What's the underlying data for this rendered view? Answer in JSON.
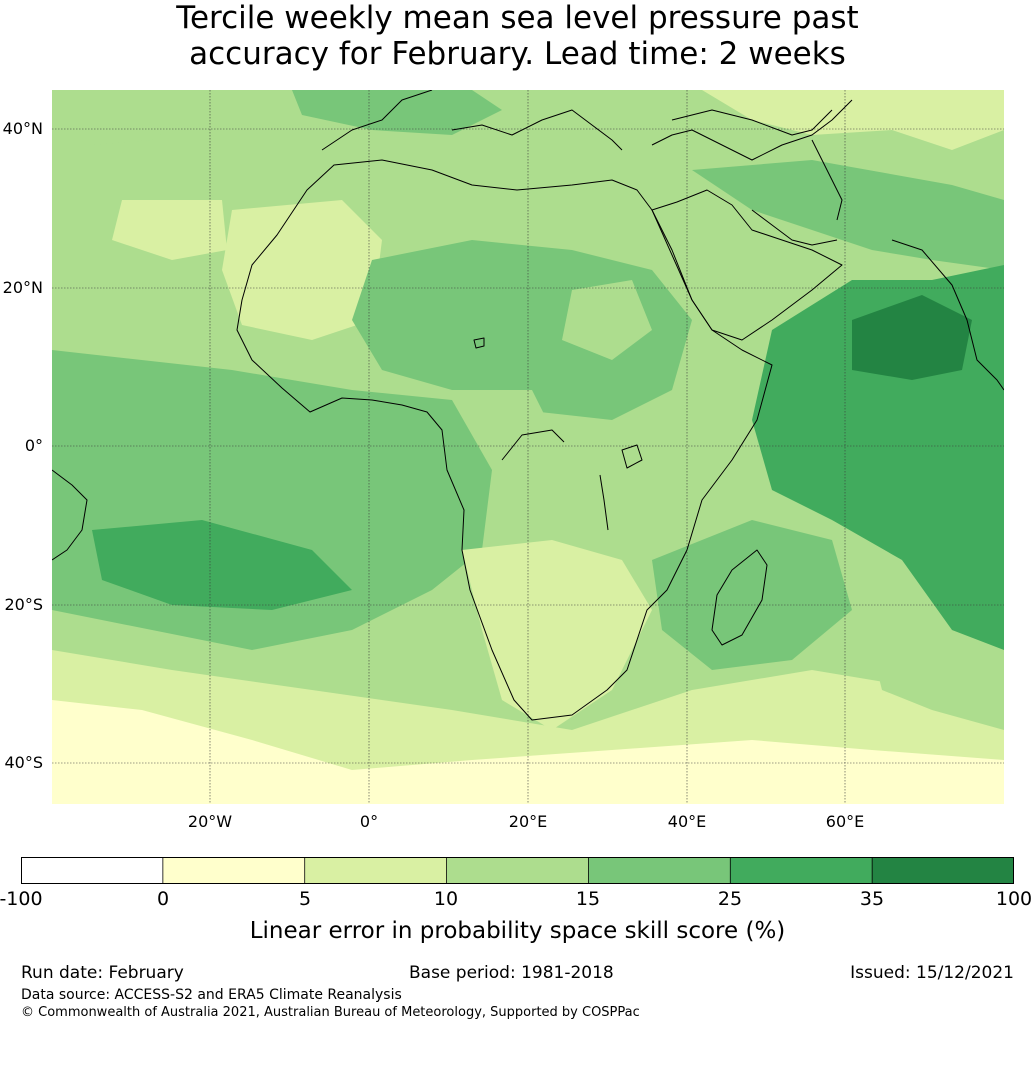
{
  "title": {
    "line1": "Tercile weekly mean sea level pressure past",
    "line2": "accuracy for February. Lead time: 2 weeks"
  },
  "map": {
    "lat_labels": [
      "40°N",
      "20°N",
      "0°",
      "20°S",
      "40°S"
    ],
    "lon_labels": [
      "20°W",
      "0°",
      "20°E",
      "40°E",
      "60°E"
    ]
  },
  "colorbar": {
    "colors": [
      "#ffffff",
      "#ffffcc",
      "#d9f0a3",
      "#addd8e",
      "#78c679",
      "#41ab5d",
      "#238443"
    ],
    "ticks": [
      "-100",
      "0",
      "5",
      "10",
      "15",
      "25",
      "35",
      "100"
    ],
    "label": "Linear error in probability space skill score (%)"
  },
  "footer": {
    "run_date": "Run date: February",
    "base_period": "Base period: 1981-2018",
    "issued": "Issued: 15/12/2021",
    "data_source": "Data source: ACCESS-S2 and ERA5 Climate Reanalysis",
    "copyright": "© Commonwealth of Australia 2021, Australian Bureau of Meteorology, Supported by COSPPac"
  }
}
